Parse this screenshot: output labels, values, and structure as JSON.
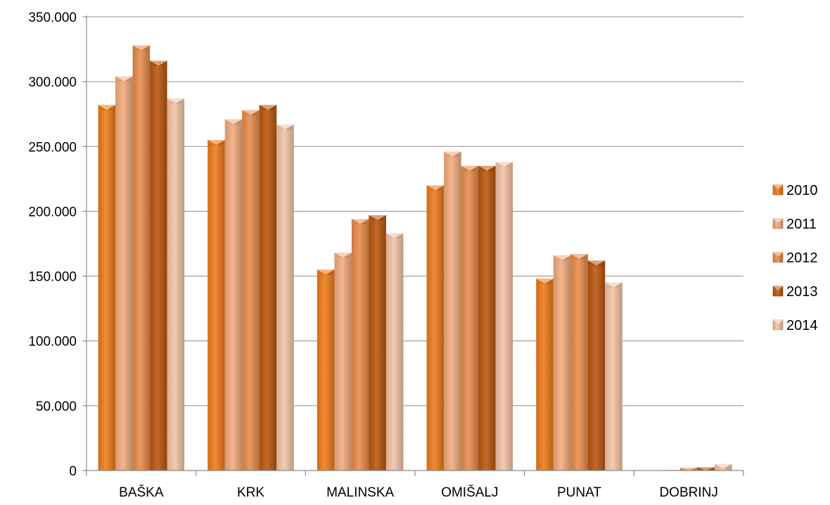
{
  "chart_data": {
    "type": "bar",
    "categories": [
      "BAŠKA",
      "KRK",
      "MALINSKA",
      "OMIŠALJ",
      "PUNAT",
      "DOBRINJ"
    ],
    "series": [
      {
        "name": "2010",
        "values": [
          282000,
          255000,
          155000,
          220000,
          148000,
          0
        ],
        "color": "#ee7a18"
      },
      {
        "name": "2011",
        "values": [
          304000,
          271000,
          168000,
          246000,
          166000,
          500
        ],
        "color": "#f2ab7c"
      },
      {
        "name": "2012",
        "values": [
          328000,
          278000,
          194000,
          235000,
          167000,
          2000
        ],
        "color": "#e78b4a"
      },
      {
        "name": "2013",
        "values": [
          316000,
          282000,
          197000,
          235000,
          162000,
          2500
        ],
        "color": "#b9560f"
      },
      {
        "name": "2014",
        "values": [
          287000,
          267000,
          183000,
          238000,
          145000,
          5000
        ],
        "color": "#f2c3a6"
      }
    ],
    "yticks": [
      "0",
      "50.000",
      "100.000",
      "150.000",
      "200.000",
      "250.000",
      "300.000",
      "350.000"
    ],
    "ylim": [
      0,
      350000
    ],
    "ystep": 50000,
    "title": "",
    "xlabel": "",
    "ylabel": "",
    "grid": true,
    "legend": "right"
  }
}
